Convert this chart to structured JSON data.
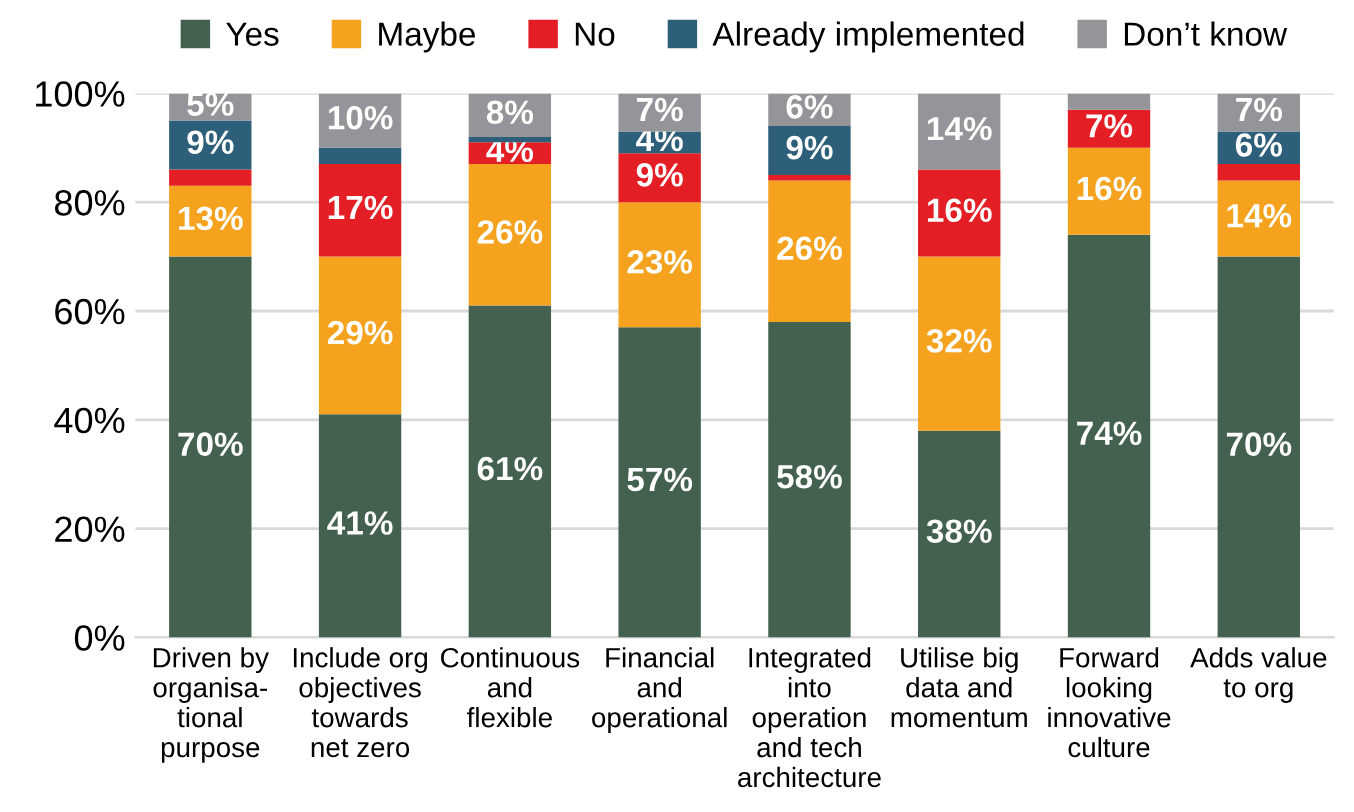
{
  "chart_data": {
    "type": "bar",
    "stacked": true,
    "categories": [
      "Driven by\norganisa-\ntional\npurpose",
      "Include org\nobjectives\ntowards\nnet zero",
      "Continuous\nand\nflexible",
      "Financial\nand\noperational",
      "Integrated\ninto\noperation\nand tech\narchitecture",
      "Utilise big\ndata and\nmomentum",
      "Forward\nlooking\ninnovative\nculture",
      "Adds value\nto org"
    ],
    "series": [
      {
        "name": "Yes",
        "color": "#44614f",
        "values": [
          70,
          41,
          61,
          57,
          58,
          38,
          74,
          70
        ],
        "value_labels": [
          "70%",
          "41%",
          "61%",
          "57%",
          "58%",
          "38%",
          "74%",
          "70%"
        ]
      },
      {
        "name": "Maybe",
        "color": "#f5a31f",
        "values": [
          13,
          29,
          26,
          23,
          26,
          32,
          16,
          14
        ],
        "value_labels": [
          "13%",
          "29%",
          "26%",
          "23%",
          "26%",
          "32%",
          "16%",
          "14%"
        ]
      },
      {
        "name": "No",
        "color": "#e31e25",
        "values": [
          3,
          17,
          4,
          9,
          1,
          16,
          7,
          3
        ],
        "value_labels": [
          null,
          "17%",
          "4%",
          "9%",
          null,
          "16%",
          "7%",
          null
        ]
      },
      {
        "name": "Already implemented",
        "color": "#2e5f7a",
        "values": [
          9,
          3,
          1,
          4,
          9,
          0,
          0,
          6
        ],
        "value_labels": [
          "9%",
          null,
          null,
          "4%",
          "9%",
          null,
          null,
          "6%"
        ]
      },
      {
        "name": "Don’t know",
        "color": "#939598",
        "values": [
          5,
          10,
          8,
          7,
          6,
          14,
          3,
          7
        ],
        "value_labels": [
          "5%",
          "10%",
          "8%",
          "7%",
          "6%",
          "14%",
          null,
          "7%"
        ]
      }
    ],
    "ylim": [
      0,
      100
    ],
    "yticks": [
      {
        "value": 0,
        "label": "0%"
      },
      {
        "value": 20,
        "label": "20%"
      },
      {
        "value": 40,
        "label": "40%"
      },
      {
        "value": 60,
        "label": "60%"
      },
      {
        "value": 80,
        "label": "80%"
      },
      {
        "value": 100,
        "label": "100%"
      }
    ],
    "grid": "y",
    "legend": "top"
  }
}
